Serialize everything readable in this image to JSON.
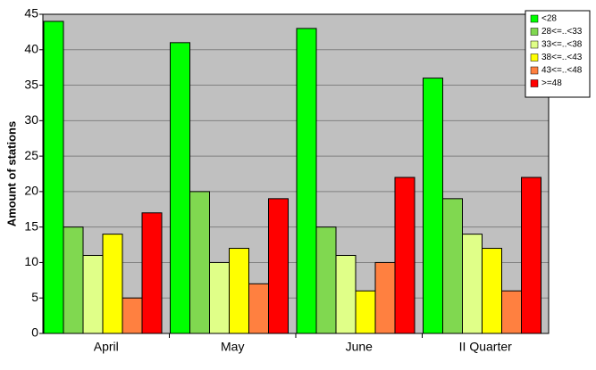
{
  "chart_data": {
    "type": "bar",
    "y_label": "Amount of stations",
    "categories": [
      "April",
      "May",
      "June",
      "II Quarter"
    ],
    "series": [
      {
        "name": "<28",
        "color": "#00ff00",
        "values": [
          44,
          41,
          43,
          36
        ]
      },
      {
        "name": "28<=..<33",
        "color": "#80d850",
        "values": [
          15,
          20,
          15,
          19
        ]
      },
      {
        "name": "33<=..<38",
        "color": "#e0ff88",
        "values": [
          11,
          10,
          11,
          14
        ]
      },
      {
        "name": "38<=..<43",
        "color": "#ffff00",
        "values": [
          14,
          12,
          6,
          12
        ]
      },
      {
        "name": "43<=..<48",
        "color": "#ff8040",
        "values": [
          5,
          7,
          10,
          6
        ]
      },
      {
        "name": ">=48",
        "color": "#ff0000",
        "values": [
          17,
          19,
          22,
          22
        ]
      }
    ],
    "ylim": [
      0,
      45
    ],
    "yticks": [
      0,
      5,
      10,
      15,
      20,
      25,
      30,
      35,
      40,
      45
    ],
    "grid": true,
    "legend": "top-right"
  }
}
